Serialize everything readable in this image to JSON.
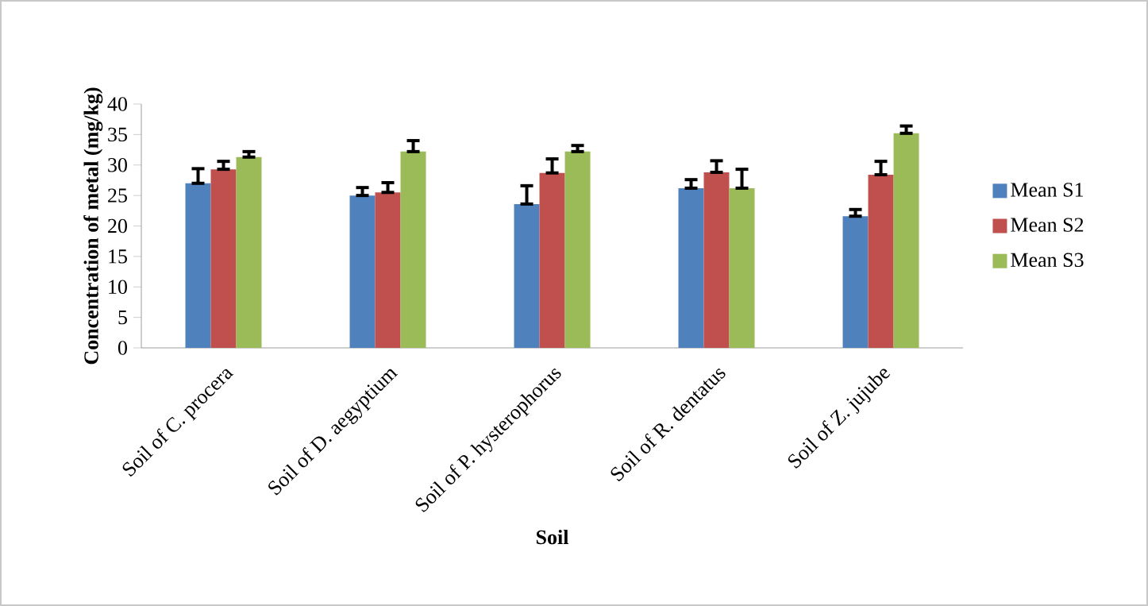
{
  "chart_data": {
    "type": "bar",
    "xlabel": "Soil",
    "ylabel": "Concentration of metal (mg/kg)",
    "categories": [
      "Soil of C. procera",
      "Soil of D. aegyptium",
      "Soil of P. hysterophorus",
      "Soil of R. dentatus",
      "Soil of Z. jujube"
    ],
    "series": [
      {
        "name": "Mean S1",
        "color": "#4f81bd",
        "values": [
          27.0,
          25.0,
          23.6,
          26.2,
          21.6
        ],
        "errors": [
          [
            27.0,
            29.4
          ],
          [
            25.0,
            26.3
          ],
          [
            23.6,
            26.6
          ],
          [
            26.2,
            27.6
          ],
          [
            21.6,
            22.7
          ]
        ]
      },
      {
        "name": "Mean S2",
        "color": "#c0504d",
        "values": [
          29.3,
          25.5,
          28.7,
          28.8,
          28.4
        ],
        "errors": [
          [
            29.3,
            30.6
          ],
          [
            25.5,
            27.1
          ],
          [
            28.7,
            31.0
          ],
          [
            28.8,
            30.7
          ],
          [
            28.4,
            30.6
          ]
        ]
      },
      {
        "name": "Mean S3",
        "color": "#9bbb59",
        "values": [
          31.3,
          32.2,
          32.2,
          26.2,
          35.2
        ],
        "errors": [
          [
            31.3,
            32.2
          ],
          [
            32.2,
            34.0
          ],
          [
            32.2,
            33.2
          ],
          [
            26.2,
            29.3
          ],
          [
            35.2,
            36.4
          ]
        ]
      }
    ],
    "ylim": [
      0,
      40
    ],
    "yticks": [
      0,
      5,
      10,
      15,
      20,
      25,
      30,
      35,
      40
    ],
    "legend": "right"
  }
}
